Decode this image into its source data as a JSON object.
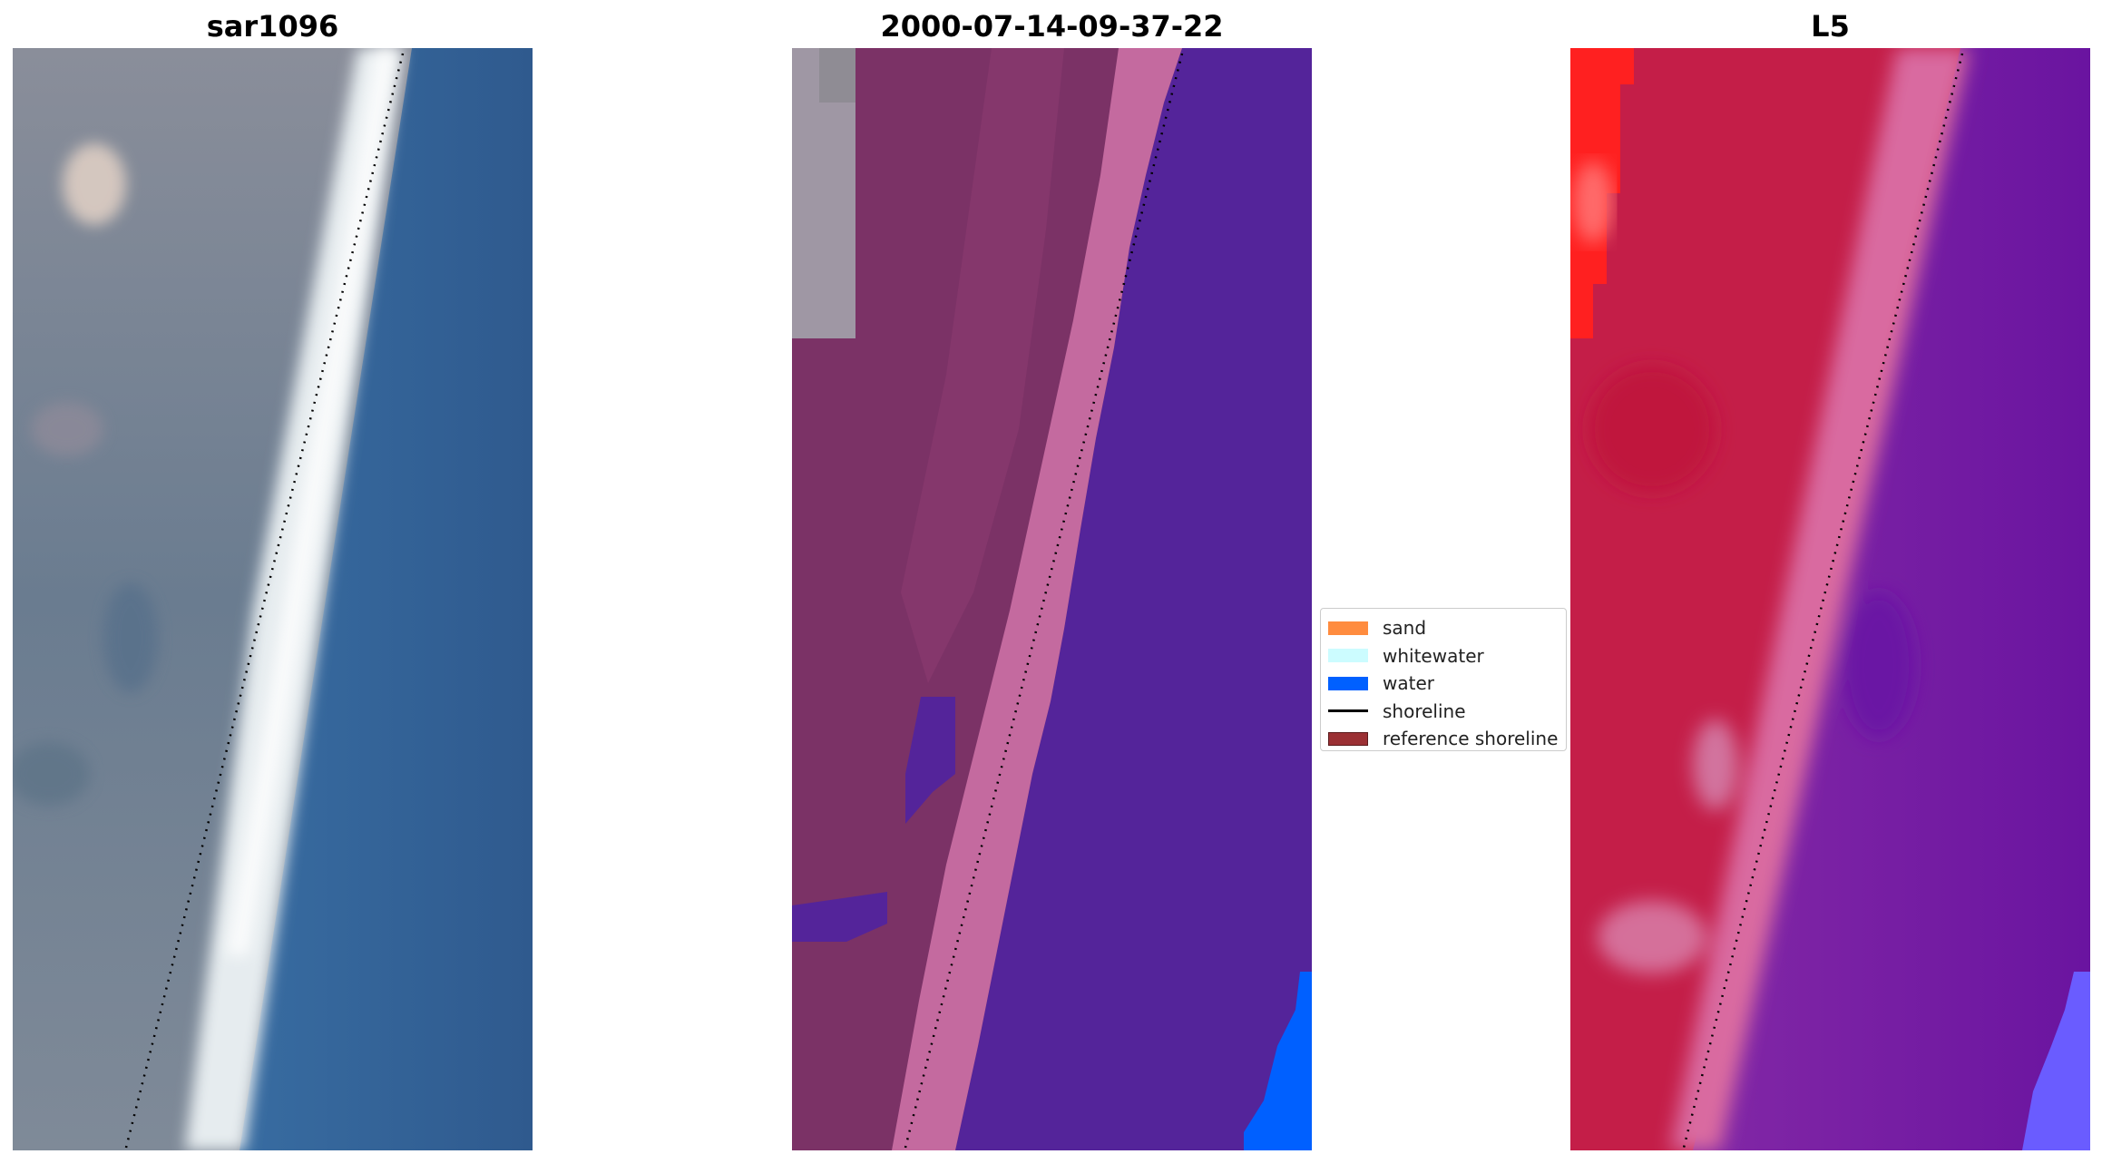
{
  "panels": [
    {
      "title": "sar1096",
      "kind": "rgb"
    },
    {
      "title": "2000-07-14-09-37-22",
      "kind": "classified"
    },
    {
      "title": "L5",
      "kind": "false-color"
    }
  ],
  "legend": {
    "items": [
      {
        "label": "sand",
        "color": "#ff8c3f",
        "type": "patch"
      },
      {
        "label": "whitewater",
        "color": "#ccfcff",
        "type": "patch"
      },
      {
        "label": "water",
        "color": "#0060ff",
        "type": "patch"
      },
      {
        "label": "shoreline",
        "color": "#000000",
        "type": "line"
      },
      {
        "label": "reference shoreline",
        "color": "#9b3034",
        "type": "patch"
      }
    ]
  }
}
